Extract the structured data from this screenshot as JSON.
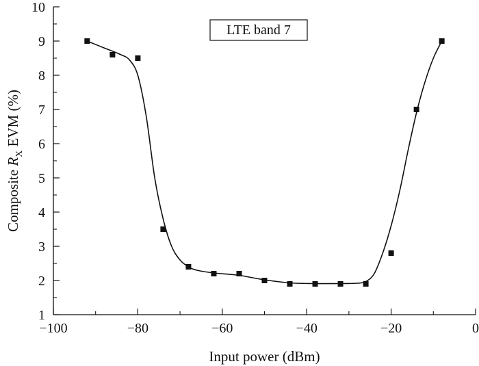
{
  "chart_data": {
    "type": "scatter",
    "title": "",
    "annotation": "LTE band 7",
    "xlabel": "Input power (dBm)",
    "ylabel": {
      "before": "Composite ",
      "italic": "R",
      "subscript": "X",
      "after": " EVM (%)"
    },
    "xlim": [
      -100,
      0
    ],
    "ylim": [
      1,
      10
    ],
    "x_ticks": [
      -100,
      -80,
      -60,
      -40,
      -20,
      0
    ],
    "x_tick_labels": [
      "−100",
      "−80",
      "−60",
      "−40",
      "−20",
      "0"
    ],
    "y_ticks": [
      1,
      2,
      3,
      4,
      5,
      6,
      7,
      8,
      9,
      10
    ],
    "y_tick_labels": [
      "1",
      "2",
      "3",
      "4",
      "5",
      "6",
      "7",
      "8",
      "9",
      "10"
    ],
    "grid": false,
    "series": [
      {
        "marker": "square",
        "x": [
          -92,
          -86,
          -80,
          -74,
          -68,
          -62,
          -56,
          -50,
          -44,
          -38,
          -32,
          -26,
          -20,
          -14,
          -8
        ],
        "y": [
          9.0,
          8.6,
          8.5,
          3.5,
          2.4,
          2.2,
          2.2,
          2.0,
          1.9,
          1.9,
          1.9,
          1.9,
          2.8,
          7.0,
          9.0
        ]
      }
    ],
    "fit_curve": {
      "x": [
        -92,
        -88,
        -84,
        -82,
        -80,
        -78,
        -76,
        -74,
        -72,
        -70,
        -68,
        -66,
        -62,
        -56,
        -50,
        -44,
        -38,
        -32,
        -28,
        -26,
        -24,
        -22,
        -20,
        -18,
        -16,
        -14,
        -12,
        -10,
        -8
      ],
      "y": [
        9.0,
        8.8,
        8.6,
        8.45,
        8.0,
        6.8,
        5.0,
        3.8,
        3.0,
        2.6,
        2.4,
        2.3,
        2.22,
        2.15,
        2.02,
        1.93,
        1.91,
        1.91,
        1.92,
        1.97,
        2.2,
        2.8,
        3.6,
        4.6,
        5.8,
        6.9,
        7.8,
        8.5,
        9.0
      ]
    }
  },
  "colors": {
    "axis": "#111111",
    "marker": "#111111",
    "curve": "#111111"
  }
}
